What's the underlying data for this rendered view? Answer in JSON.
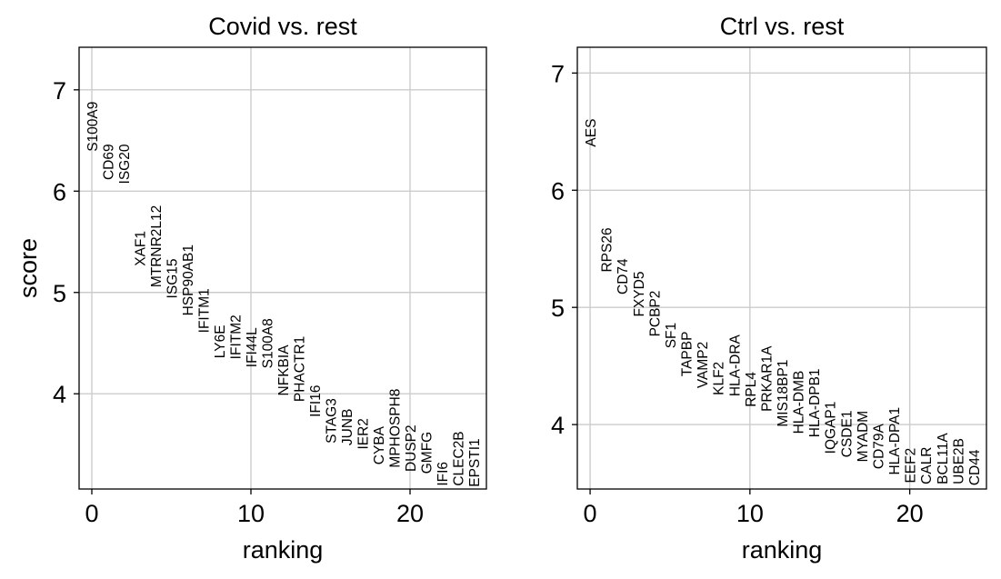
{
  "chart_data": [
    {
      "type": "scatter",
      "title": "Covid vs. rest",
      "xlabel": "ranking",
      "ylabel": "score",
      "xlim": [
        -0.8,
        24.8
      ],
      "ylim": [
        3.06,
        7.42
      ],
      "xticks": [
        0,
        10,
        20
      ],
      "yticks": [
        4,
        5,
        6,
        7
      ],
      "grid": true,
      "points": [
        {
          "rank": 0,
          "gene": "S100A9",
          "score": 6.39
        },
        {
          "rank": 1,
          "gene": "CD69",
          "score": 6.11
        },
        {
          "rank": 2,
          "gene": "ISG20",
          "score": 6.07
        },
        {
          "rank": 3,
          "gene": "XAF1",
          "score": 5.26
        },
        {
          "rank": 4,
          "gene": "MTRNR2L12",
          "score": 5.05
        },
        {
          "rank": 5,
          "gene": "ISG15",
          "score": 4.94
        },
        {
          "rank": 6,
          "gene": "HSP90AB1",
          "score": 4.77
        },
        {
          "rank": 7,
          "gene": "IFITM1",
          "score": 4.6
        },
        {
          "rank": 8,
          "gene": "LY6E",
          "score": 4.35
        },
        {
          "rank": 9,
          "gene": "IFITM2",
          "score": 4.34
        },
        {
          "rank": 10,
          "gene": "IFI44L",
          "score": 4.26
        },
        {
          "rank": 11,
          "gene": "S100A8",
          "score": 4.25
        },
        {
          "rank": 12,
          "gene": "NFKBIA",
          "score": 3.98
        },
        {
          "rank": 13,
          "gene": "PHACTR1",
          "score": 3.92
        },
        {
          "rank": 14,
          "gene": "IFI16",
          "score": 3.77
        },
        {
          "rank": 15,
          "gene": "STAG3",
          "score": 3.51
        },
        {
          "rank": 16,
          "gene": "JUNB",
          "score": 3.49
        },
        {
          "rank": 17,
          "gene": "IER2",
          "score": 3.45
        },
        {
          "rank": 18,
          "gene": "CYBA",
          "score": 3.3
        },
        {
          "rank": 19,
          "gene": "MPHOSPH8",
          "score": 3.27
        },
        {
          "rank": 20,
          "gene": "DUSP2",
          "score": 3.23
        },
        {
          "rank": 21,
          "gene": "GMFG",
          "score": 3.21
        },
        {
          "rank": 22,
          "gene": "IFI6",
          "score": 3.09
        },
        {
          "rank": 23,
          "gene": "CLEC2B",
          "score": 3.09
        },
        {
          "rank": 24,
          "gene": "EPSTI1",
          "score": 3.08
        }
      ]
    },
    {
      "type": "scatter",
      "title": "Ctrl vs. rest",
      "xlabel": "ranking",
      "ylabel": "",
      "xlim": [
        -0.8,
        24.8
      ],
      "ylim": [
        3.45,
        7.22
      ],
      "xticks": [
        0,
        10,
        20
      ],
      "yticks": [
        4,
        5,
        6,
        7
      ],
      "grid": true,
      "points": [
        {
          "rank": 0,
          "gene": "AES",
          "score": 6.37
        },
        {
          "rank": 1,
          "gene": "RPS26",
          "score": 5.3
        },
        {
          "rank": 2,
          "gene": "CD74",
          "score": 5.11
        },
        {
          "rank": 3,
          "gene": "FXYD5",
          "score": 4.92
        },
        {
          "rank": 4,
          "gene": "PCBP2",
          "score": 4.75
        },
        {
          "rank": 5,
          "gene": "SF1",
          "score": 4.65
        },
        {
          "rank": 6,
          "gene": "TAPBP",
          "score": 4.41
        },
        {
          "rank": 7,
          "gene": "VAMP2",
          "score": 4.31
        },
        {
          "rank": 8,
          "gene": "KLF2",
          "score": 4.25
        },
        {
          "rank": 9,
          "gene": "HLA-DRA",
          "score": 4.24
        },
        {
          "rank": 10,
          "gene": "RPL4",
          "score": 4.15
        },
        {
          "rank": 11,
          "gene": "PRKAR1A",
          "score": 4.11
        },
        {
          "rank": 12,
          "gene": "MIS18BP1",
          "score": 3.98
        },
        {
          "rank": 13,
          "gene": "HLA-DMB",
          "score": 3.92
        },
        {
          "rank": 14,
          "gene": "HLA-DPB1",
          "score": 3.89
        },
        {
          "rank": 15,
          "gene": "IQGAP1",
          "score": 3.75
        },
        {
          "rank": 16,
          "gene": "CSDE1",
          "score": 3.72
        },
        {
          "rank": 17,
          "gene": "MYADM",
          "score": 3.68
        },
        {
          "rank": 18,
          "gene": "CD79A",
          "score": 3.62
        },
        {
          "rank": 19,
          "gene": "HLA-DPA1",
          "score": 3.57
        },
        {
          "rank": 20,
          "gene": "EEF2",
          "score": 3.5
        },
        {
          "rank": 21,
          "gene": "CALR",
          "score": 3.49
        },
        {
          "rank": 22,
          "gene": "BCL11A",
          "score": 3.49
        },
        {
          "rank": 23,
          "gene": "UBE2B",
          "score": 3.49
        },
        {
          "rank": 24,
          "gene": "CD44",
          "score": 3.48
        }
      ]
    }
  ]
}
